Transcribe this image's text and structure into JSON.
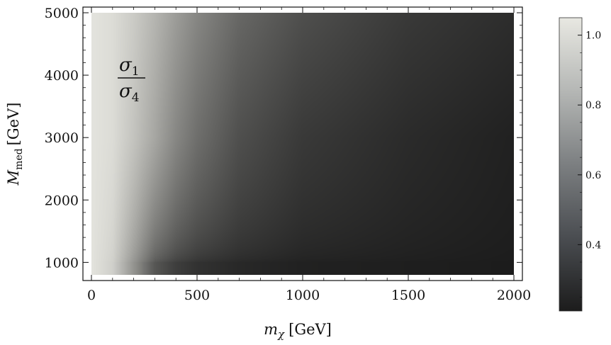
{
  "chart_data": {
    "type": "heatmap",
    "title": "",
    "annotation": {
      "numerator": "σ",
      "numerator_sub": "1",
      "denominator": "σ",
      "denominator_sub": "4"
    },
    "xlabel": {
      "symbol": "m",
      "subscript": "χ",
      "unit": "[GeV]"
    },
    "ylabel": {
      "symbol": "M",
      "subscript": "med",
      "unit": "[GeV]"
    },
    "xlim": [
      0,
      2000
    ],
    "ylim": [
      800,
      5000
    ],
    "x_ticks": [
      0,
      500,
      1000,
      1500,
      2000
    ],
    "y_ticks": [
      1000,
      2000,
      3000,
      4000,
      5000
    ],
    "x_tick_labels": [
      "0",
      "500",
      "1000",
      "1500",
      "2000"
    ],
    "y_tick_labels": [
      "1000",
      "2000",
      "3000",
      "4000",
      "5000"
    ],
    "colorbar": {
      "range": [
        0.21,
        1.05
      ],
      "ticks": [
        0.4,
        0.6,
        0.8,
        1.0
      ],
      "tick_labels": [
        "0.4",
        "0.6",
        "0.8",
        "1.0"
      ],
      "colors": {
        "low": "#1c1c1c",
        "high": "#e8e8e2"
      }
    },
    "grid": false,
    "sample_values": {
      "x": [
        0,
        100,
        200,
        300,
        400,
        500,
        700,
        1000,
        1500,
        2000
      ],
      "y_5000": [
        1.03,
        1.0,
        0.93,
        0.84,
        0.74,
        0.65,
        0.52,
        0.42,
        0.33,
        0.28
      ],
      "y_3000": [
        1.03,
        1.0,
        0.9,
        0.78,
        0.65,
        0.55,
        0.42,
        0.33,
        0.27,
        0.23
      ],
      "y_1000": [
        1.03,
        0.95,
        0.7,
        0.45,
        0.35,
        0.3,
        0.26,
        0.23,
        0.22,
        0.21
      ]
    }
  }
}
